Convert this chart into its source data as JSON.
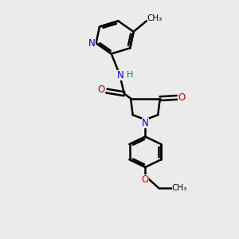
{
  "bg_color": "#ebebeb",
  "bond_color": "#000000",
  "bond_width": 1.8,
  "N_color": "#0000cc",
  "O_color": "#cc0000",
  "H_color": "#008080",
  "figsize": [
    3.0,
    3.0
  ],
  "dpi": 100,
  "xlim": [
    0,
    10
  ],
  "ylim": [
    0,
    12
  ]
}
